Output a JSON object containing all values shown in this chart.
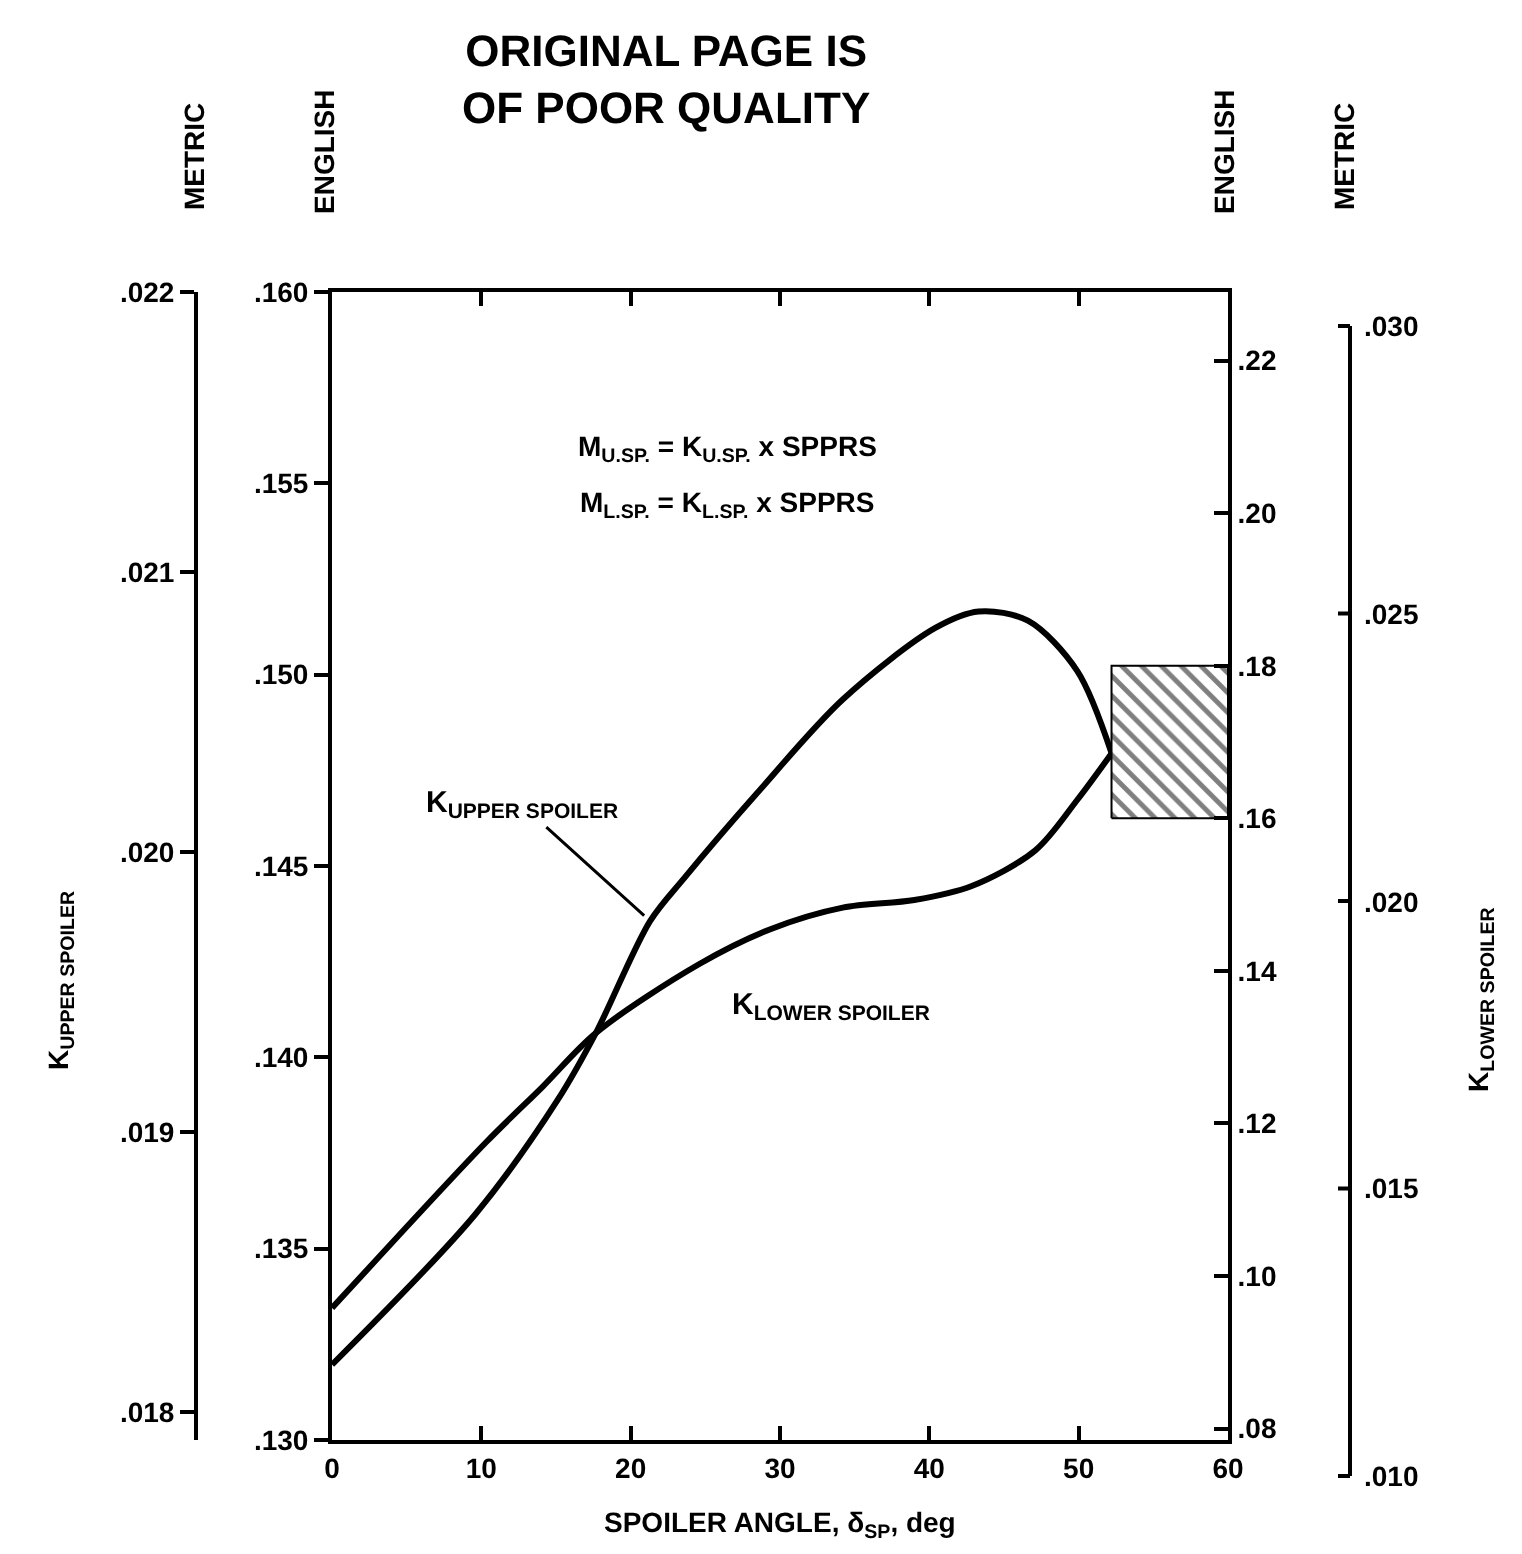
{
  "chart_data": {
    "type": "line",
    "xlabel": "SPOILER ANGLE, δ$_{SP}$, deg",
    "ylabel": "K$_{UPPER SPOILER}$",
    "annotations": [
      "ORIGINAL PAGE IS\nOF POOR QUALITY",
      "METRIC",
      "ENGLISH",
      "ENGLISH",
      "METRIC",
      "M$_{U.SP.}$ = K$_{U.SP.}$ x SPPRS",
      "M$_{L.SP.}$ = K$_{L.SP.}$ x SPPRS",
      "K$_{LOWER SPOILER}$",
      ".030",
      ".025",
      ".020",
      ".015",
      ".010"
    ],
    "series": [
      {
        "name": "K$_{UPPER SPOILER}$",
        "color": "#000000",
        "x": [
          0,
          9.6,
          15.1,
          17.7,
          21.3,
          23.6,
          28.5,
          34.2,
          40.4,
          43.3,
          46.6,
          49.9,
          52.2
        ],
        "values": [
          0.13197,
          0.1359,
          0.13888,
          0.14066,
          0.14356,
          0.14469,
          0.14692,
          0.14935,
          0.15122,
          0.15165,
          0.15141,
          0.1501,
          0.14795
        ]
      },
      {
        "name": "K$_{LOWER SPOILER}$",
        "color": "#000000",
        "axis": "y2",
        "x": [
          0,
          10.3,
          14.1,
          17.7,
          24.6,
          29.4,
          34.2,
          39.0,
          42.8,
          47.1,
          49.9,
          52.2
        ],
        "values": [
          0.0958,
          0.1175,
          0.1248,
          0.1319,
          0.1409,
          0.1455,
          0.1483,
          0.1493,
          0.1511,
          0.1558,
          0.1624,
          0.1685
        ]
      }
    ],
    "bands": [
      {
        "axis": "y2",
        "from": 0.16,
        "to": 0.18,
        "color": "#000000"
      }
    ],
    "xlim": [
      0,
      60
    ],
    "xticks": [
      0,
      10,
      20,
      30,
      40,
      50,
      60
    ],
    "ylim": [
      0.13,
      0.16
    ],
    "yticks": [
      {
        "value": 0.13,
        "label": ".130"
      },
      {
        "value": 0.135,
        "label": ".135"
      },
      {
        "value": 0.14,
        "label": ".140"
      },
      {
        "value": 0.145,
        "label": ".145"
      },
      {
        "value": 0.15,
        "label": ".150"
      },
      {
        "value": 0.155,
        "label": ".155"
      },
      {
        "value": 0.16,
        "label": ".160"
      }
    ],
    "y2lim": [
      0.0785,
      0.229
    ],
    "y2ticks": [
      {
        "value": 0.08,
        "label": ".08"
      },
      {
        "value": 0.1,
        "label": ".10"
      },
      {
        "value": 0.12,
        "label": ".12"
      },
      {
        "value": 0.14,
        "label": ".14"
      },
      {
        "value": 0.16,
        "label": ".16"
      },
      {
        "value": 0.18,
        "label": ".18"
      },
      {
        "value": 0.2,
        "label": ".20"
      },
      {
        "value": 0.22,
        "label": ".22"
      }
    ],
    "y3lim": [
      0.0179,
      0.022
    ],
    "y3ticks": [
      {
        "value": 0.018,
        "label": ".018"
      },
      {
        "value": 0.019,
        "label": ".019"
      },
      {
        "value": 0.02,
        "label": ".020"
      },
      {
        "value": 0.021,
        "label": ".021"
      },
      {
        "value": 0.022,
        "label": ".022"
      }
    ],
    "legend": false
  }
}
